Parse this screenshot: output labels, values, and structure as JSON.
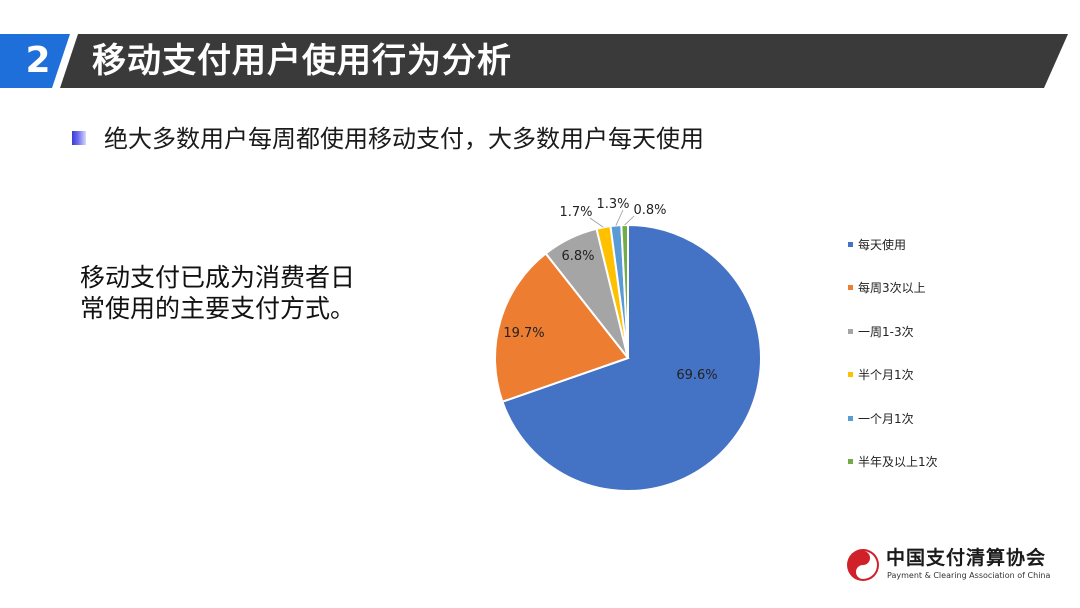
{
  "header": {
    "section_number": "2",
    "title": "移动支付用户使用行为分析"
  },
  "bullet": {
    "text": "绝大多数用户每周都使用移动支付，大多数用户每天使用"
  },
  "note": {
    "text": "移动支付已成为消费者日常使用的主要支付方式。"
  },
  "colors": {
    "title_bar": "#3a3a3a",
    "accent_blue": "#1e6fd9",
    "text": "#1a1a1a"
  },
  "chart_data": {
    "type": "pie",
    "title": "",
    "categories": [
      "每天使用",
      "每周3次以上",
      "一周1-3次",
      "半个月1次",
      "一个月1次",
      "半年及以上1次"
    ],
    "values": [
      69.6,
      19.7,
      6.8,
      1.7,
      1.3,
      0.8
    ],
    "value_labels": [
      "69.6%",
      "19.7%",
      "6.8%",
      "1.7%",
      "1.3%",
      "0.8%"
    ],
    "colors": [
      "#4472c4",
      "#ed7d31",
      "#a5a5a5",
      "#ffc000",
      "#5b9bd5",
      "#70ad47"
    ],
    "legend": "right",
    "start": "12 o'clock, clockwise"
  },
  "logo": {
    "name_cn": "中国支付清算协会",
    "name_en": "Payment & Clearing Association of China"
  }
}
